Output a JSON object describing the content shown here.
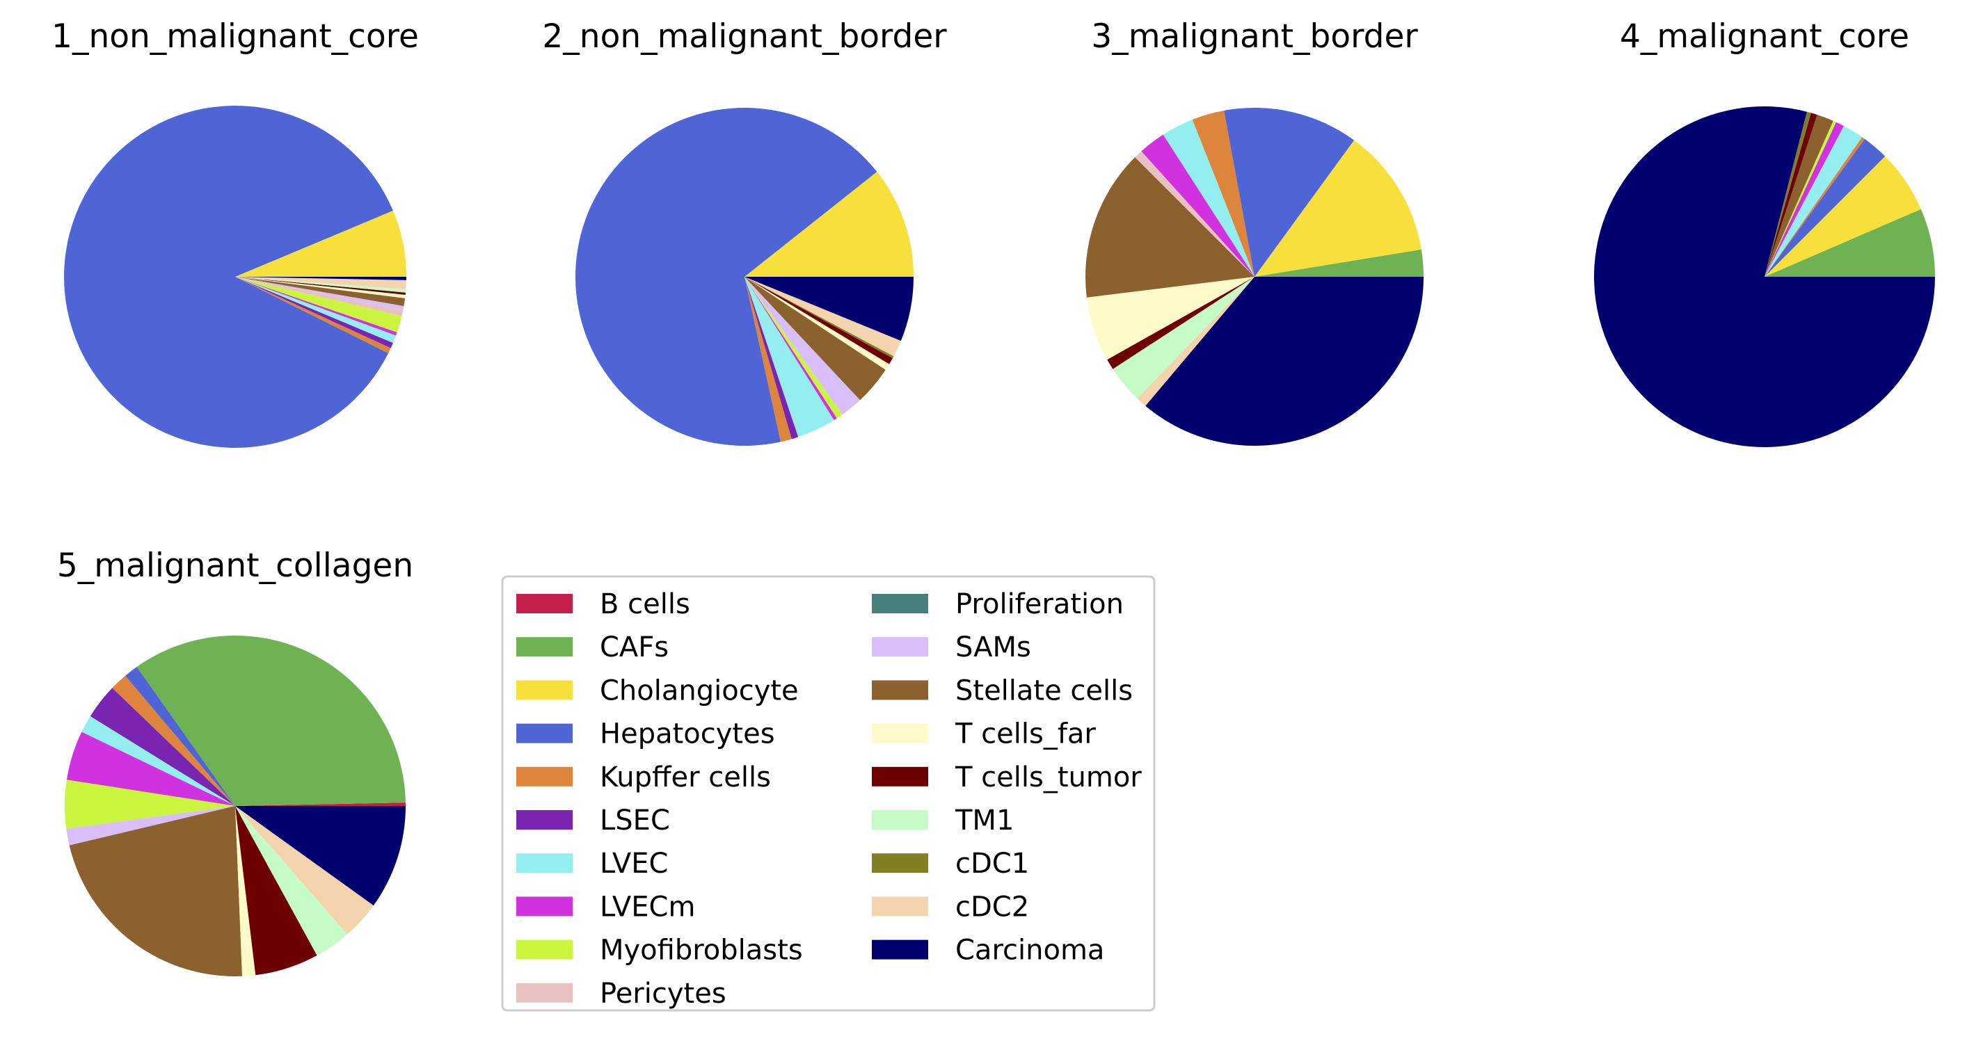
{
  "categories": [
    {
      "name": "B cells",
      "color": "#c41e4a"
    },
    {
      "name": "CAFs",
      "color": "#6fb254"
    },
    {
      "name": "Cholangiocyte",
      "color": "#f7e03c"
    },
    {
      "name": "Hepatocytes",
      "color": "#4f64d5"
    },
    {
      "name": "Kupffer cells",
      "color": "#dd843d"
    },
    {
      "name": "LSEC",
      "color": "#7a25b2"
    },
    {
      "name": "LVEC",
      "color": "#94eeef"
    },
    {
      "name": "LVECm",
      "color": "#d132e0"
    },
    {
      "name": "Myofibroblasts",
      "color": "#cbf43f"
    },
    {
      "name": "Pericytes",
      "color": "#e9c1c1"
    },
    {
      "name": "Proliferation",
      "color": "#467f7c"
    },
    {
      "name": "SAMs",
      "color": "#d9befa"
    },
    {
      "name": "Stellate cells",
      "color": "#8b612e"
    },
    {
      "name": "T cells_far",
      "color": "#fef9c8"
    },
    {
      "name": "T cells_tumor",
      "color": "#6d0000"
    },
    {
      "name": "TM1",
      "color": "#c5fcc6"
    },
    {
      "name": "cDC1",
      "color": "#808022"
    },
    {
      "name": "cDC2",
      "color": "#f4d4ae"
    },
    {
      "name": "Carcinoma",
      "color": "#00006e"
    }
  ],
  "chart_data": [
    {
      "type": "pie",
      "title": "1_non_malignant_core",
      "values": [
        0,
        0,
        6,
        82,
        0.5,
        0.5,
        0.7,
        0.3,
        1.5,
        0.5,
        0,
        0.4,
        0.7,
        0.3,
        0.2,
        0.3,
        0,
        0.8,
        0.3
      ]
    },
    {
      "type": "pie",
      "title": "2_non_malignant_border",
      "values": [
        0,
        0,
        10,
        63.5,
        1,
        0.6,
        3.5,
        0.3,
        0.6,
        0,
        0,
        2,
        3.5,
        0.6,
        0.6,
        0,
        0.2,
        1.5,
        5.8
      ]
    },
    {
      "type": "pie",
      "title": "3_malignant_border",
      "values": [
        0,
        2.5,
        12,
        12.5,
        3,
        0,
        3,
        2.5,
        0,
        0.8,
        0,
        0,
        14,
        6,
        1,
        3.5,
        0,
        1,
        35
      ]
    },
    {
      "type": "pie",
      "title": "4_malignant_core",
      "values": [
        0,
        6.5,
        6,
        2.5,
        0.3,
        0,
        2,
        0.8,
        0.3,
        0,
        0,
        0,
        1.6,
        0,
        0.6,
        0,
        0.4,
        0,
        79
      ]
    },
    {
      "type": "pie",
      "title": "5_malignant_collagen",
      "values": [
        0.3,
        33,
        0,
        1.3,
        1.6,
        3.2,
        1.6,
        4.5,
        4.4,
        0,
        0,
        1.5,
        21,
        1.2,
        5.8,
        3.3,
        0,
        3.5,
        9.5
      ]
    }
  ]
}
